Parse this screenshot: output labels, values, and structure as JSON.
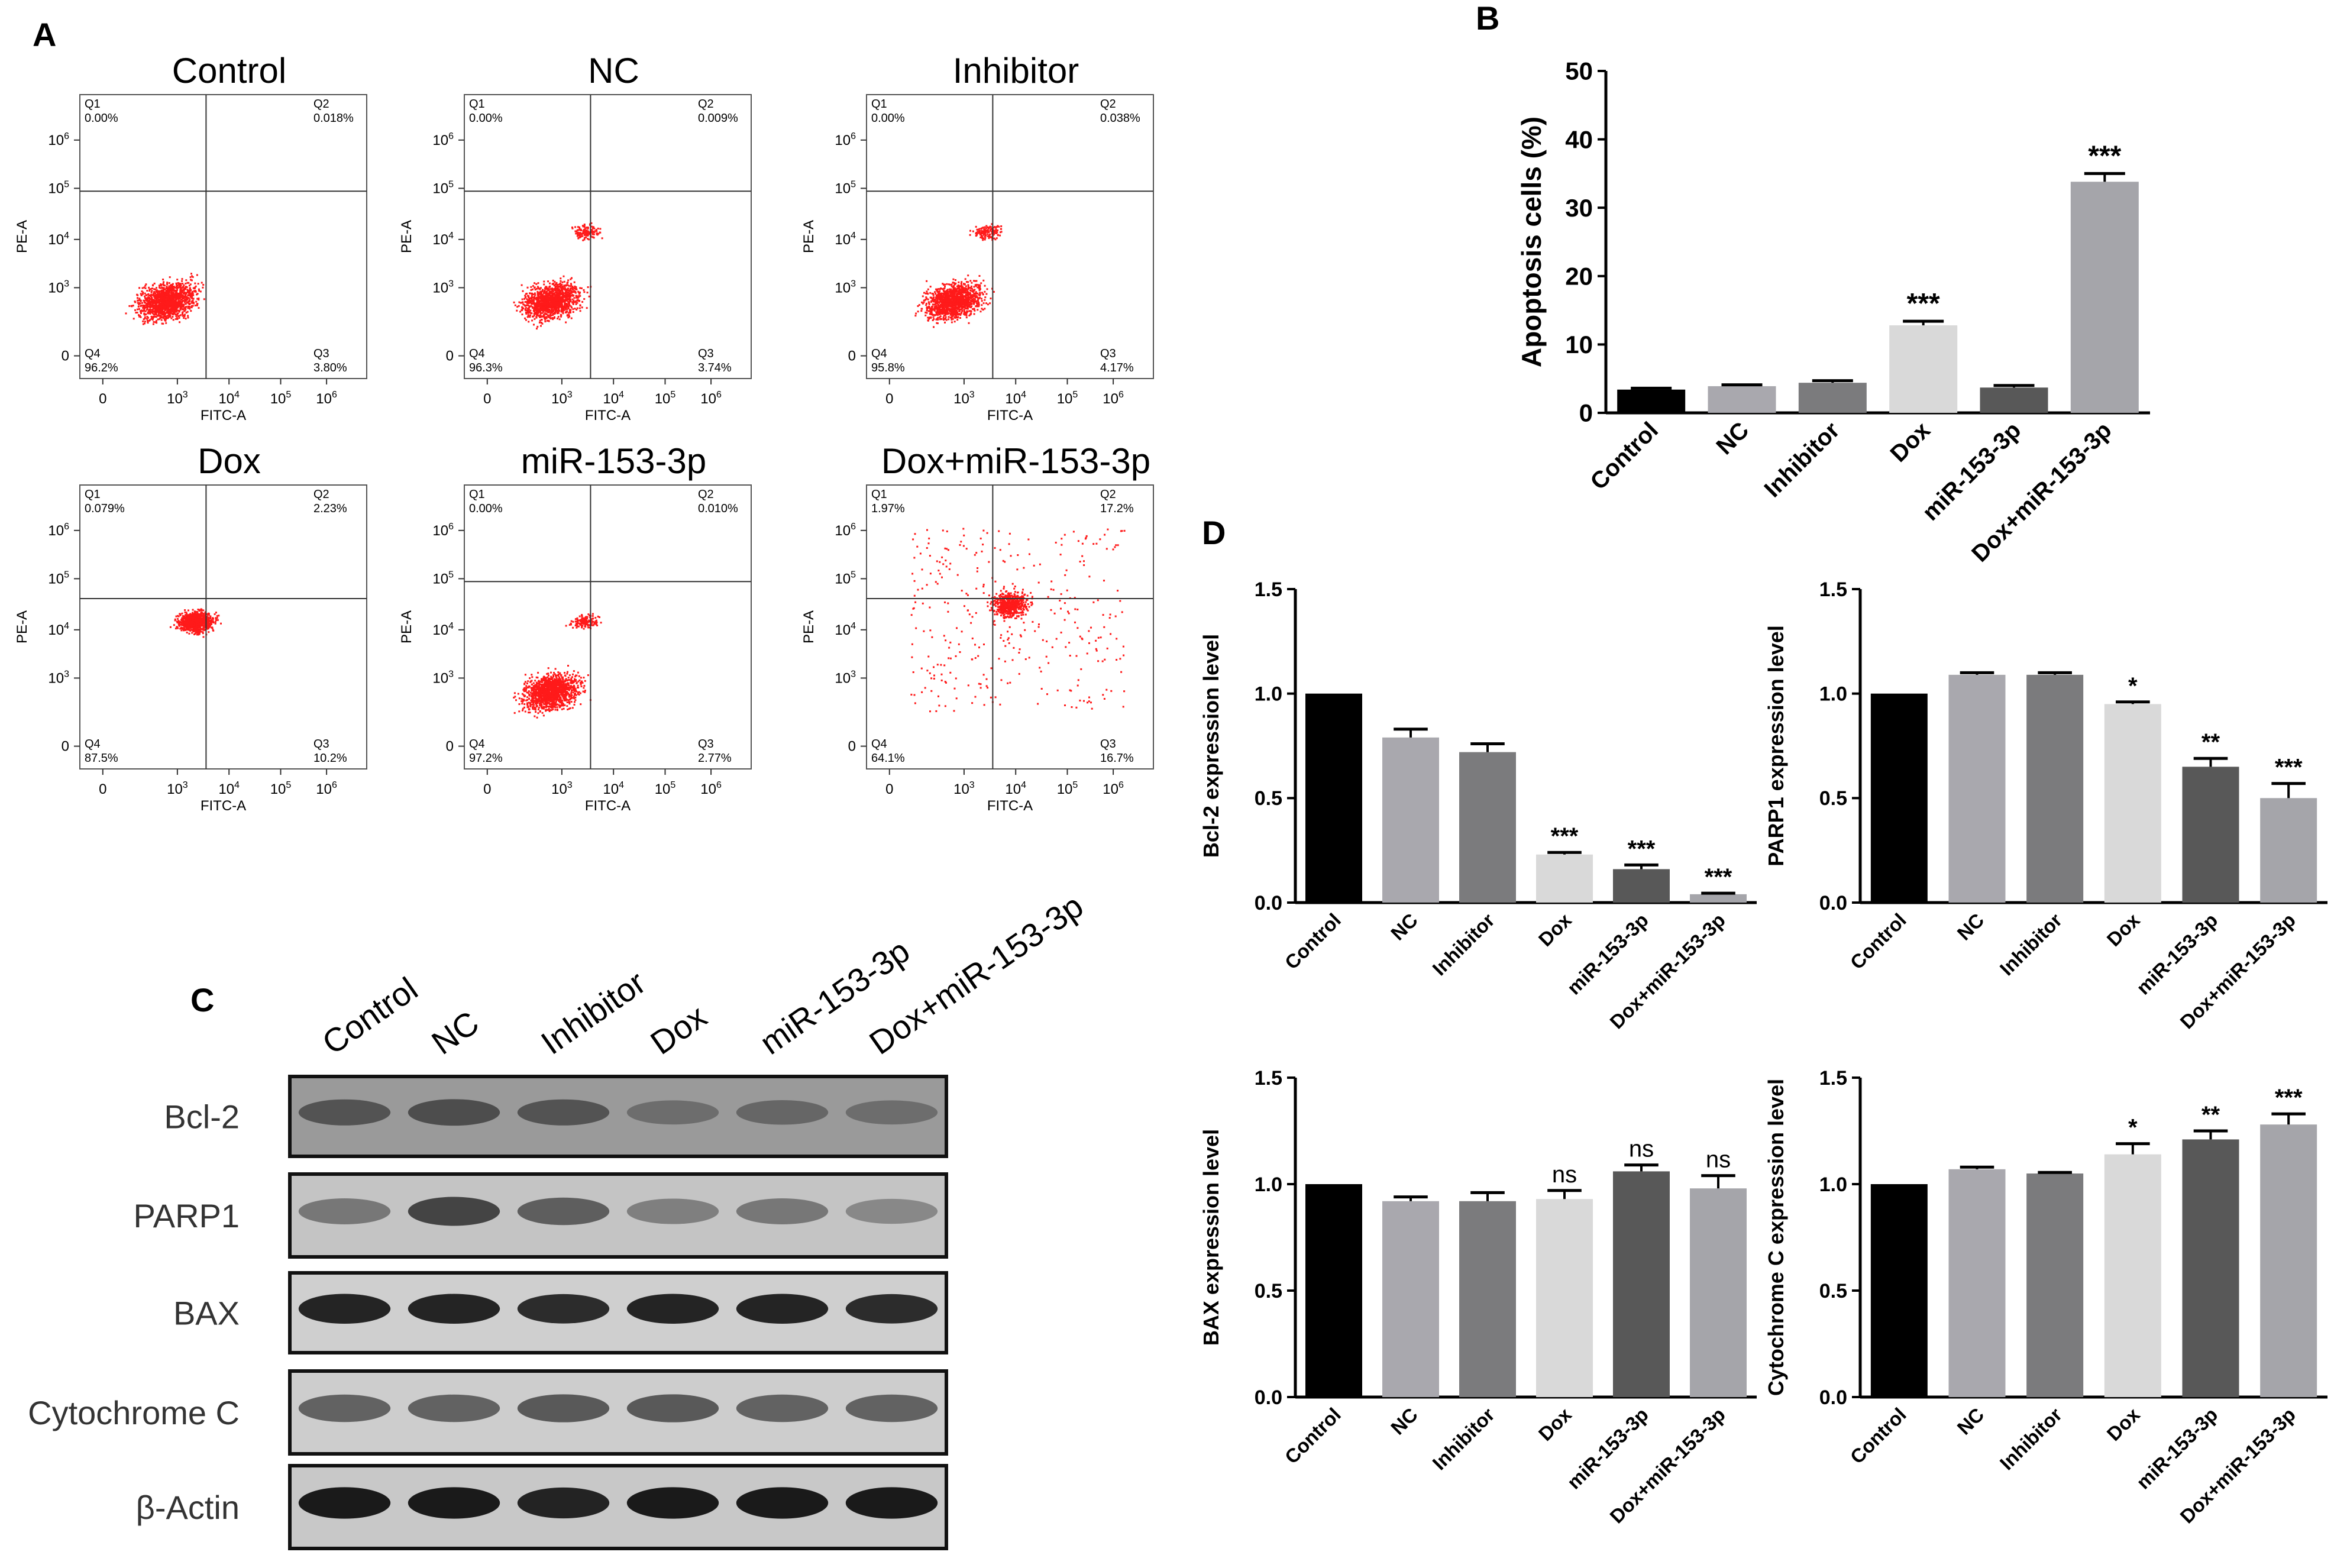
{
  "panels": {
    "A": {
      "letter": "A"
    },
    "B": {
      "letter": "B"
    },
    "C": {
      "letter": "C"
    },
    "D": {
      "letter": "D"
    }
  },
  "flow_plots": [
    {
      "title": "Control",
      "q1": "0.00%",
      "q2": "0.018%",
      "q3": "3.80%",
      "q4": "96.2%",
      "cluster": "low",
      "density": 1400,
      "seed": 11
    },
    {
      "title": "NC",
      "q1": "0.00%",
      "q2": "0.009%",
      "q3": "3.74%",
      "q4": "96.3%",
      "cluster": "low-up",
      "density": 1400,
      "seed": 22
    },
    {
      "title": "Inhibitor",
      "q1": "0.00%",
      "q2": "0.038%",
      "q3": "4.17%",
      "q4": "95.8%",
      "cluster": "low-up",
      "density": 1500,
      "seed": 33
    },
    {
      "title": "Dox",
      "q1": "0.079%",
      "q2": "2.23%",
      "q3": "10.2%",
      "q4": "87.5%",
      "cluster": "mid",
      "density": 900,
      "seed": 44
    },
    {
      "title": "miR-153-3p",
      "q1": "0.00%",
      "q2": "0.010%",
      "q3": "2.77%",
      "q4": "97.2%",
      "cluster": "low-up",
      "density": 1500,
      "seed": 55
    },
    {
      "title": "Dox+miR-153-3p",
      "q1": "1.97%",
      "q2": "17.2%",
      "q3": "16.7%",
      "q4": "64.1%",
      "cluster": "spread",
      "density": 900,
      "seed": 66
    }
  ],
  "flow_axes": {
    "xlabel": "FITC-A",
    "ylabel": "PE-A",
    "quadrant_names": [
      "Q1",
      "Q2",
      "Q3",
      "Q4"
    ],
    "ticks": [
      "0",
      "10",
      "10",
      "10",
      "10"
    ],
    "tick_exps": [
      "",
      "3",
      "4",
      "5",
      "6"
    ]
  },
  "chart_data": [
    {
      "id": "B",
      "type": "bar",
      "categories": [
        "Control",
        "NC",
        "Inhibitor",
        "Dox",
        "miR-153-3p",
        "Dox+miR-153-3p"
      ],
      "values": [
        3.4,
        3.9,
        4.4,
        12.8,
        3.7,
        33.8
      ],
      "errors": [
        0.2,
        0.2,
        0.3,
        0.6,
        0.3,
        1.2
      ],
      "annotations": [
        "",
        "",
        "",
        "***",
        "",
        "***"
      ],
      "ylabel": "Apoptosis cells (%)",
      "ylim": [
        0,
        50
      ],
      "yticks": [
        "0",
        "10",
        "20",
        "30",
        "40",
        "50"
      ],
      "colors": [
        "#000000",
        "#a9a8ae",
        "#7b7b7d",
        "#d9d9d9",
        "#585858",
        "#a5a5aa"
      ]
    },
    {
      "id": "D1",
      "type": "bar",
      "categories": [
        "Control",
        "NC",
        "Inhibitor",
        "Dox",
        "miR-153-3p",
        "Dox+miR-153-3p"
      ],
      "values": [
        1.0,
        0.79,
        0.72,
        0.23,
        0.16,
        0.04
      ],
      "errors": [
        0.0,
        0.04,
        0.04,
        0.01,
        0.02,
        0.005
      ],
      "annotations": [
        "",
        "",
        "",
        "***",
        "***",
        "***"
      ],
      "ylabel": "Bcl-2 expression level",
      "ylim": [
        0,
        1.5
      ],
      "yticks": [
        "0.0",
        "0.5",
        "1.0",
        "1.5"
      ],
      "colors": [
        "#000000",
        "#a9a8ae",
        "#7b7b7d",
        "#d9d9d9",
        "#585858",
        "#a5a5aa"
      ]
    },
    {
      "id": "D2",
      "type": "bar",
      "categories": [
        "Control",
        "NC",
        "Inhibitor",
        "Dox",
        "miR-153-3p",
        "Dox+miR-153-3p"
      ],
      "values": [
        1.0,
        1.09,
        1.09,
        0.95,
        0.65,
        0.5
      ],
      "errors": [
        0.0,
        0.01,
        0.01,
        0.01,
        0.04,
        0.07
      ],
      "annotations": [
        "",
        "",
        "",
        "*",
        "**",
        "***"
      ],
      "ylabel": "PARP1 expression level",
      "ylim": [
        0,
        1.5
      ],
      "yticks": [
        "0.0",
        "0.5",
        "1.0",
        "1.5"
      ],
      "colors": [
        "#000000",
        "#a9a8ae",
        "#7b7b7d",
        "#d9d9d9",
        "#585858",
        "#a5a5aa"
      ]
    },
    {
      "id": "D3",
      "type": "bar",
      "categories": [
        "Control",
        "NC",
        "Inhibitor",
        "Dox",
        "miR-153-3p",
        "Dox+miR-153-3p"
      ],
      "values": [
        1.0,
        0.92,
        0.92,
        0.93,
        1.06,
        0.98
      ],
      "errors": [
        0.0,
        0.02,
        0.04,
        0.04,
        0.03,
        0.06
      ],
      "annotations": [
        "",
        "",
        "",
        "ns",
        "ns",
        "ns"
      ],
      "ylabel": "BAX expression level",
      "ylim": [
        0,
        1.5
      ],
      "yticks": [
        "0.0",
        "0.5",
        "1.0",
        "1.5"
      ],
      "colors": [
        "#000000",
        "#a9a8ae",
        "#7b7b7d",
        "#d9d9d9",
        "#585858",
        "#a5a5aa"
      ]
    },
    {
      "id": "D4",
      "type": "bar",
      "categories": [
        "Control",
        "NC",
        "Inhibitor",
        "Dox",
        "miR-153-3p",
        "Dox+miR-153-3p"
      ],
      "values": [
        1.0,
        1.07,
        1.05,
        1.14,
        1.21,
        1.28
      ],
      "errors": [
        0.0,
        0.01,
        0.005,
        0.05,
        0.04,
        0.05
      ],
      "annotations": [
        "",
        "",
        "",
        "*",
        "**",
        "***"
      ],
      "ylabel": "Cytochrome C expression level",
      "ylim": [
        0,
        1.5
      ],
      "yticks": [
        "0.0",
        "0.5",
        "1.0",
        "1.5"
      ],
      "colors": [
        "#000000",
        "#a9a8ae",
        "#7b7b7d",
        "#d9d9d9",
        "#585858",
        "#a5a5aa"
      ]
    }
  ],
  "western_blot": {
    "lanes": [
      "Control",
      "NC",
      "Inhibitor",
      "Dox",
      "miR-153-3p",
      "Dox+miR-153-3p"
    ],
    "rows": [
      {
        "label": "Bcl-2",
        "intensity": [
          0.55,
          0.6,
          0.55,
          0.35,
          0.4,
          0.35
        ],
        "bg": "#9a9a9a"
      },
      {
        "label": "PARP1",
        "intensity": [
          0.45,
          0.75,
          0.6,
          0.4,
          0.45,
          0.35
        ],
        "bg": "#c4c4c4"
      },
      {
        "label": "BAX",
        "intensity": [
          0.95,
          0.95,
          0.9,
          0.95,
          0.95,
          0.9
        ],
        "bg": "#cfcfcf"
      },
      {
        "label": "Cytochrome C",
        "intensity": [
          0.6,
          0.6,
          0.65,
          0.65,
          0.6,
          0.6
        ],
        "bg": "#cdcdcd"
      },
      {
        "label": "β-Actin",
        "intensity": [
          1.0,
          1.0,
          0.95,
          1.0,
          1.0,
          1.0
        ],
        "bg": "#c8c8c8"
      }
    ]
  }
}
